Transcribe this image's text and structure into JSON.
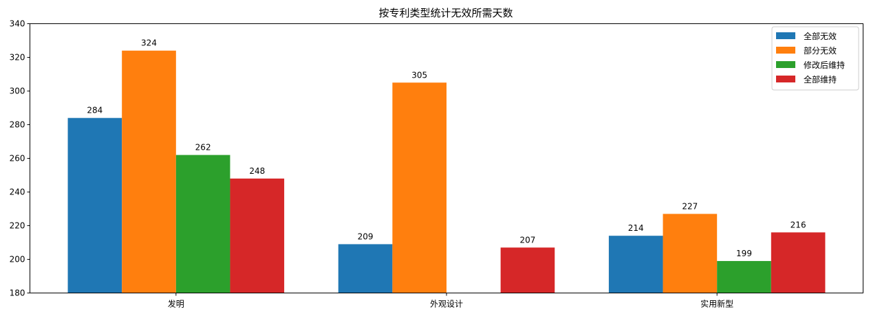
{
  "chart_data": {
    "type": "bar",
    "title": "按专利类型统计无效所需天数",
    "xlabel": "",
    "ylabel": "",
    "categories": [
      "发明",
      "外观设计",
      "实用新型"
    ],
    "ylim": [
      180,
      340
    ],
    "yticks": [
      180,
      200,
      220,
      240,
      260,
      280,
      300,
      320,
      340
    ],
    "grid": false,
    "legend_placement": "top-right",
    "series": [
      {
        "name": "全部无效",
        "color": "#1f77b4",
        "values": [
          284,
          209,
          214
        ]
      },
      {
        "name": "部分无效",
        "color": "#ff7f0e",
        "values": [
          324,
          305,
          227
        ]
      },
      {
        "name": "修改后维持",
        "color": "#2ca02c",
        "values": [
          262,
          null,
          199
        ]
      },
      {
        "name": "全部维持",
        "color": "#d62728",
        "values": [
          248,
          207,
          216
        ]
      }
    ]
  }
}
